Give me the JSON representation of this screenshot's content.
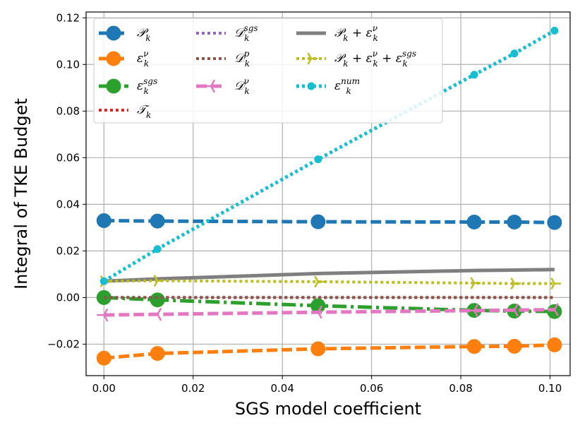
{
  "chart_data": {
    "type": "line",
    "xlabel": "SGS model coefficient",
    "ylabel": "Integral of TKE Budget",
    "xlim": [
      -0.004,
      0.1045
    ],
    "ylim": [
      -0.0335,
      0.1225
    ],
    "grid": true,
    "legend_position": "top-left",
    "x_ticks": [
      0.0,
      0.02,
      0.04,
      0.06,
      0.08,
      0.1
    ],
    "x_tick_labels": [
      "0.00",
      "0.02",
      "0.04",
      "0.06",
      "0.08",
      "0.10"
    ],
    "y_ticks": [
      -0.02,
      0.0,
      0.02,
      0.04,
      0.06,
      0.08,
      0.1,
      0.12
    ],
    "y_tick_labels": [
      "−0.02",
      "0.00",
      "0.02",
      "0.04",
      "0.06",
      "0.08",
      "0.10",
      "0.12"
    ],
    "x": [
      0.0,
      0.012,
      0.048,
      0.083,
      0.092,
      0.101
    ],
    "series": [
      {
        "id": "P",
        "base": "𝒫",
        "sub": "k",
        "sup": "",
        "color": "#1f77b4",
        "dash": "15,6",
        "width": 5,
        "marker": "circle",
        "markersize": 10,
        "values": [
          0.033,
          0.0328,
          0.0325,
          0.0324,
          0.0324,
          0.0322
        ]
      },
      {
        "id": "eps_nu",
        "base": "ε",
        "sub": "k",
        "sup": "ν",
        "color": "#ff7f0e",
        "dash": "15,6",
        "width": 5,
        "marker": "circle",
        "markersize": 10,
        "values": [
          -0.026,
          -0.024,
          -0.022,
          -0.021,
          -0.0209,
          -0.0203
        ]
      },
      {
        "id": "eps_sgs",
        "base": "ε",
        "sub": "k",
        "sup": "sgs",
        "color": "#2ca02c",
        "dash": "20,6,4,6",
        "width": 5,
        "marker": "circle",
        "markersize": 10,
        "values": [
          0.0,
          -0.001,
          -0.0035,
          -0.0055,
          -0.0058,
          -0.006
        ]
      },
      {
        "id": "T",
        "base": "𝒯",
        "sub": "k",
        "sup": "",
        "color": "#d62728",
        "dash": "4,4",
        "width": 4,
        "marker": "none",
        "markersize": 0,
        "values": [
          0.0,
          0.0,
          0.0,
          0.0,
          0.0,
          0.0
        ]
      },
      {
        "id": "D_sgs",
        "base": "𝒟",
        "sub": "k",
        "sup": "sgs",
        "color": "#9467bd",
        "dash": "4,4",
        "width": 4,
        "marker": "none",
        "markersize": 0,
        "values": [
          0.0,
          0.0,
          0.0,
          0.0,
          0.0,
          0.0
        ]
      },
      {
        "id": "D_p",
        "base": "𝒟",
        "sub": "k",
        "sup": "p",
        "color": "#8c564b",
        "dash": "4,4",
        "width": 4,
        "marker": "none",
        "markersize": 0,
        "values": [
          0.0,
          0.0,
          0.0,
          0.0,
          0.0,
          0.0
        ]
      },
      {
        "id": "D_nu",
        "base": "𝒟",
        "sub": "k",
        "sup": "ν",
        "color": "#e377c2",
        "dash": "15,6",
        "width": 5,
        "marker": "tri_left",
        "markersize": 10,
        "values": [
          -0.0075,
          -0.0072,
          -0.0063,
          -0.0056,
          -0.0054,
          -0.0052
        ]
      },
      {
        "id": "P_eps",
        "base": "𝒫",
        "sub": "k",
        "sup": "",
        "extra": " + ε",
        "extra_sub": "k",
        "extra_sup": "ν",
        "color": "#7f7f7f",
        "dash": "",
        "width": 5,
        "marker": "none",
        "markersize": 0,
        "values": [
          0.007,
          0.008,
          0.0103,
          0.0116,
          0.0118,
          0.012
        ]
      },
      {
        "id": "P_eps_sgs",
        "base": "𝒫",
        "sub": "k",
        "sup": "",
        "extra": " + ε",
        "extra_sub": "k",
        "extra_sup": "ν",
        "extra2": " + ε",
        "extra2_sub": "k",
        "extra2_sup": "sgs",
        "color": "#bcbd22",
        "dash": "4,4",
        "width": 4,
        "marker": "tri_right",
        "markersize": 9,
        "values": [
          0.007,
          0.0072,
          0.0068,
          0.0062,
          0.006,
          0.006
        ]
      },
      {
        "id": "eps_num",
        "base": "ε",
        "sub": "k",
        "sup": "num",
        "color": "#17becf",
        "dash": "4,4",
        "width": 5,
        "marker": "circle",
        "markersize": 5,
        "values": [
          0.007,
          0.0208,
          0.0593,
          0.0956,
          0.1047,
          0.1145
        ]
      }
    ]
  }
}
